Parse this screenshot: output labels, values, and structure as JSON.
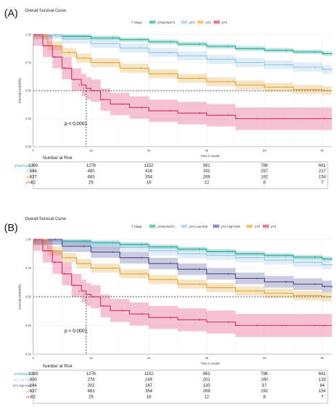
{
  "chart_data": [
    {
      "type": "line",
      "panel_label": "(A)",
      "title": "Overall Survival Curve",
      "legend_title": "T Stage",
      "legend_position": "top",
      "xlabel": "Time in month",
      "ylabel": "Survival probability",
      "xlim": [
        0,
        62
      ],
      "ylim": [
        0,
        1
      ],
      "xticks": [
        "0",
        "12",
        "24",
        "36",
        "48",
        "60"
      ],
      "yticks": [
        "0.00",
        "0.25",
        "0.50",
        "0.75",
        "1.00"
      ],
      "median_line": 0.5,
      "p_value": "p < 0.0001",
      "series": [
        {
          "name": "pTis/pTa/pT1",
          "color": "#1aa58f",
          "band": 0.02,
          "x": [
            0,
            6,
            12,
            18,
            24,
            30,
            36,
            42,
            48,
            54,
            60,
            62
          ],
          "y": [
            1.0,
            0.985,
            0.97,
            0.955,
            0.935,
            0.915,
            0.895,
            0.875,
            0.86,
            0.845,
            0.83,
            0.82
          ]
        },
        {
          "name": "pT2",
          "color": "#8fc2e6",
          "band": 0.04,
          "x": [
            0,
            6,
            12,
            18,
            24,
            30,
            36,
            42,
            48,
            54,
            60,
            62
          ],
          "y": [
            1.0,
            0.96,
            0.92,
            0.88,
            0.84,
            0.81,
            0.78,
            0.75,
            0.73,
            0.71,
            0.69,
            0.68
          ]
        },
        {
          "name": "pT3",
          "color": "#e0a22b",
          "band": 0.04,
          "x": [
            0,
            3,
            6,
            9,
            12,
            18,
            24,
            30,
            36,
            42,
            48,
            54,
            60,
            62
          ],
          "y": [
            1.0,
            0.9,
            0.84,
            0.79,
            0.75,
            0.7,
            0.65,
            0.61,
            0.58,
            0.55,
            0.53,
            0.51,
            0.5,
            0.5
          ]
        },
        {
          "name": "pT4",
          "color": "#d6245f",
          "band": 0.1,
          "x": [
            0,
            2,
            4,
            6,
            8,
            10,
            11,
            12,
            14,
            16,
            20,
            24,
            30,
            36,
            42,
            48,
            54,
            60,
            62
          ],
          "y": [
            1.0,
            0.9,
            0.8,
            0.7,
            0.6,
            0.55,
            0.52,
            0.5,
            0.42,
            0.38,
            0.35,
            0.32,
            0.3,
            0.28,
            0.25,
            0.25,
            0.25,
            0.25,
            0.25
          ]
        }
      ],
      "risk_table": {
        "title": "Number at Risk",
        "times": [
          0,
          12,
          24,
          36,
          48,
          60
        ],
        "rows": [
          {
            "name": "pTis/pTa/pT1",
            "color": "#1aa58f",
            "values": [
              "1389",
              "1278",
              "1152",
              "961",
              "786",
              "661"
            ]
          },
          {
            "name": "pT2",
            "color": "#8fc2e6",
            "values": [
              "546",
              "480",
              "416",
              "331",
              "257",
              "217"
            ]
          },
          {
            "name": "pT3",
            "color": "#e0a22b",
            "values": [
              "637",
              "483",
              "354",
              "269",
              "192",
              "154"
            ]
          },
          {
            "name": "pT4",
            "color": "#d6245f",
            "values": [
              "62",
              "25",
              "16",
              "12",
              "8",
              "7"
            ]
          }
        ]
      }
    },
    {
      "type": "line",
      "panel_label": "(B)",
      "title": "Overall Survival Curve",
      "legend_title": "T Stage",
      "legend_position": "top",
      "xlabel": "Time in month",
      "ylabel": "Survival probability",
      "xlim": [
        0,
        62
      ],
      "ylim": [
        0,
        1
      ],
      "xticks": [
        "0",
        "12",
        "24",
        "36",
        "48",
        "60"
      ],
      "yticks": [
        "0.00",
        "0.25",
        "0.50",
        "0.75",
        "1.00"
      ],
      "median_line": 0.5,
      "p_value": "p < 0.0001",
      "series": [
        {
          "name": "pTis/pTa/pT1",
          "color": "#1aa58f",
          "band": 0.02,
          "x": [
            0,
            6,
            12,
            18,
            24,
            30,
            36,
            42,
            48,
            54,
            60,
            62
          ],
          "y": [
            1.0,
            0.985,
            0.97,
            0.955,
            0.935,
            0.915,
            0.895,
            0.875,
            0.86,
            0.845,
            0.83,
            0.82
          ]
        },
        {
          "name": "pT2 Low Risk",
          "color": "#8fc2e6",
          "band": 0.04,
          "x": [
            0,
            6,
            12,
            18,
            24,
            30,
            36,
            42,
            48,
            54,
            60,
            62
          ],
          "y": [
            1.0,
            0.975,
            0.95,
            0.93,
            0.9,
            0.875,
            0.86,
            0.84,
            0.82,
            0.8,
            0.78,
            0.77
          ]
        },
        {
          "name": "pT2 High Risk",
          "color": "#44458e",
          "band": 0.05,
          "x": [
            0,
            6,
            12,
            18,
            24,
            30,
            36,
            42,
            48,
            54,
            60,
            62
          ],
          "y": [
            1.0,
            0.94,
            0.89,
            0.84,
            0.79,
            0.74,
            0.7,
            0.66,
            0.63,
            0.61,
            0.59,
            0.58
          ]
        },
        {
          "name": "pT3",
          "color": "#e0a22b",
          "band": 0.04,
          "x": [
            0,
            3,
            6,
            9,
            12,
            18,
            24,
            30,
            36,
            42,
            48,
            54,
            60,
            62
          ],
          "y": [
            1.0,
            0.9,
            0.84,
            0.79,
            0.75,
            0.7,
            0.65,
            0.61,
            0.58,
            0.55,
            0.53,
            0.51,
            0.5,
            0.5
          ]
        },
        {
          "name": "pT4",
          "color": "#d6245f",
          "band": 0.1,
          "x": [
            0,
            2,
            4,
            6,
            8,
            10,
            11,
            12,
            14,
            16,
            20,
            24,
            30,
            36,
            42,
            48,
            54,
            60,
            62
          ],
          "y": [
            1.0,
            0.9,
            0.8,
            0.7,
            0.6,
            0.55,
            0.52,
            0.5,
            0.42,
            0.38,
            0.35,
            0.32,
            0.3,
            0.28,
            0.25,
            0.25,
            0.25,
            0.25,
            0.25
          ]
        }
      ],
      "risk_table": {
        "title": "Number at Risk",
        "times": [
          0,
          12,
          24,
          36,
          48,
          60
        ],
        "rows": [
          {
            "name": "pTis/pTa/pT1",
            "color": "#1aa58f",
            "values": [
              "1389",
              "1278",
              "1152",
              "961",
              "786",
              "661"
            ]
          },
          {
            "name": "pT2 Low Risk",
            "color": "#8fc2e6",
            "values": [
              "300",
              "278",
              "249",
              "201",
              "160",
              "133"
            ]
          },
          {
            "name": "pT2 High Risk",
            "color": "#44458e",
            "values": [
              "246",
              "202",
              "167",
              "130",
              "97",
              "84"
            ]
          },
          {
            "name": "pT3",
            "color": "#e0a22b",
            "values": [
              "637",
              "483",
              "354",
              "269",
              "192",
              "154"
            ]
          },
          {
            "name": "pT4",
            "color": "#d6245f",
            "values": [
              "62",
              "25",
              "16",
              "12",
              "8",
              "7"
            ]
          }
        ]
      }
    }
  ]
}
